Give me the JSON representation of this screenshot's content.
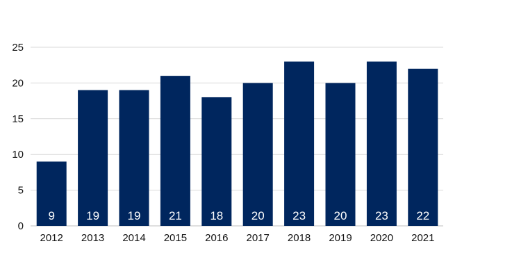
{
  "chart_data": {
    "type": "bar",
    "categories": [
      "2012",
      "2013",
      "2014",
      "2015",
      "2016",
      "2017",
      "2018",
      "2019",
      "2020",
      "2021"
    ],
    "values": [
      9,
      19,
      19,
      21,
      18,
      20,
      23,
      20,
      23,
      22
    ],
    "title": "",
    "xlabel": "",
    "ylabel": "",
    "ylim": [
      0,
      25
    ],
    "yticks": [
      0,
      5,
      10,
      15,
      20,
      25
    ],
    "grid": "horizontal",
    "data_labels": "inside-bottom",
    "bar_color": "#00265e",
    "label_color": "#ffffff"
  }
}
